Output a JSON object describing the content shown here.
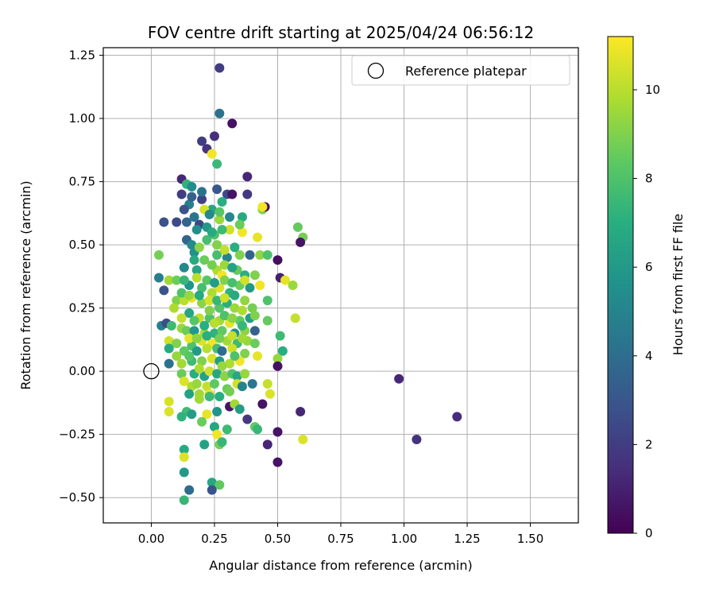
{
  "chart_data": {
    "type": "scatter",
    "title": "FOV centre drift starting at 2025/04/24 06:56:12",
    "xlabel": "Angular distance from reference (arcmin)",
    "ylabel": "Rotation from reference (arcmin)",
    "xlim": [
      -0.19,
      1.69
    ],
    "ylim": [
      -0.6,
      1.28
    ],
    "xticks": [
      0.0,
      0.25,
      0.5,
      0.75,
      1.0,
      1.25,
      1.5
    ],
    "xtick_labels": [
      "0.00",
      "0.25",
      "0.50",
      "0.75",
      "1.00",
      "1.25",
      "1.50"
    ],
    "yticks": [
      -0.5,
      -0.25,
      0.0,
      0.25,
      0.5,
      0.75,
      1.0,
      1.25
    ],
    "ytick_labels": [
      "−0.50",
      "−0.25",
      "0.00",
      "0.25",
      "0.50",
      "0.75",
      "1.00",
      "1.25"
    ],
    "grid": true,
    "legend": {
      "position": "top-right",
      "entries": [
        {
          "label": "Reference platepar",
          "marker": "open-circle"
        }
      ]
    },
    "reference_point": {
      "x": 0.0,
      "y": 0.0
    },
    "colorbar": {
      "label": "Hours from first FF file",
      "min": 0,
      "max": 11.2,
      "ticks": [
        0,
        2,
        4,
        6,
        8,
        10
      ],
      "tick_labels": [
        "0",
        "2",
        "4",
        "6",
        "8",
        "10"
      ],
      "colormap": "viridis"
    },
    "points": [
      [
        0.27,
        1.2,
        2.0
      ],
      [
        0.27,
        1.02,
        4.2
      ],
      [
        0.32,
        0.98,
        0.5
      ],
      [
        0.25,
        0.93,
        1.5
      ],
      [
        0.2,
        0.91,
        2.0
      ],
      [
        0.22,
        0.88,
        1.7
      ],
      [
        0.24,
        0.86,
        11.0
      ],
      [
        0.26,
        0.82,
        7.5
      ],
      [
        0.12,
        0.76,
        1.2
      ],
      [
        0.38,
        0.77,
        1.2
      ],
      [
        0.14,
        0.74,
        7.2
      ],
      [
        0.16,
        0.73,
        5.5
      ],
      [
        0.12,
        0.7,
        2.0
      ],
      [
        0.26,
        0.72,
        3.0
      ],
      [
        0.3,
        0.7,
        2.5
      ],
      [
        0.32,
        0.7,
        0.6
      ],
      [
        0.38,
        0.7,
        1.8
      ],
      [
        0.2,
        0.68,
        2.2
      ],
      [
        0.28,
        0.67,
        7.0
      ],
      [
        0.15,
        0.66,
        4.8
      ],
      [
        0.24,
        0.64,
        6.5
      ],
      [
        0.21,
        0.64,
        10.5
      ],
      [
        0.44,
        0.64,
        9.0
      ],
      [
        0.45,
        0.65,
        0.4
      ],
      [
        0.44,
        0.65,
        11.0
      ],
      [
        0.05,
        0.59,
        2.8
      ],
      [
        0.1,
        0.59,
        2.5
      ],
      [
        0.14,
        0.59,
        3.6
      ],
      [
        0.19,
        0.58,
        2.4
      ],
      [
        0.22,
        0.57,
        6.0
      ],
      [
        0.27,
        0.6,
        9.5
      ],
      [
        0.36,
        0.61,
        6.8
      ],
      [
        0.58,
        0.57,
        8.5
      ],
      [
        0.6,
        0.53,
        8.8
      ],
      [
        0.59,
        0.51,
        0.6
      ],
      [
        0.14,
        0.52,
        3.6
      ],
      [
        0.16,
        0.5,
        5.2
      ],
      [
        0.25,
        0.54,
        8.0
      ],
      [
        0.31,
        0.56,
        10.4
      ],
      [
        0.36,
        0.55,
        11.0
      ],
      [
        0.42,
        0.53,
        10.8
      ],
      [
        0.03,
        0.46,
        8.8
      ],
      [
        0.17,
        0.47,
        5.6
      ],
      [
        0.19,
        0.49,
        9.2
      ],
      [
        0.21,
        0.44,
        8.6
      ],
      [
        0.26,
        0.46,
        7.8
      ],
      [
        0.3,
        0.45,
        5.0
      ],
      [
        0.35,
        0.46,
        9.0
      ],
      [
        0.39,
        0.46,
        3.5
      ],
      [
        0.43,
        0.46,
        9.3
      ],
      [
        0.46,
        0.46,
        8.0
      ],
      [
        0.5,
        0.44,
        0.4
      ],
      [
        0.13,
        0.41,
        5.2
      ],
      [
        0.18,
        0.4,
        6.5
      ],
      [
        0.26,
        0.4,
        9.8
      ],
      [
        0.28,
        0.38,
        11.0
      ],
      [
        0.34,
        0.4,
        8.5
      ],
      [
        0.37,
        0.38,
        7.0
      ],
      [
        0.41,
        0.38,
        9.0
      ],
      [
        0.51,
        0.37,
        1.0
      ],
      [
        0.53,
        0.36,
        10.8
      ],
      [
        0.56,
        0.34,
        9.5
      ],
      [
        0.03,
        0.37,
        4.8
      ],
      [
        0.07,
        0.36,
        9.6
      ],
      [
        0.1,
        0.36,
        8.6
      ],
      [
        0.15,
        0.34,
        5.8
      ],
      [
        0.2,
        0.33,
        7.8
      ],
      [
        0.24,
        0.31,
        9.8
      ],
      [
        0.27,
        0.33,
        10.6
      ],
      [
        0.31,
        0.31,
        7.2
      ],
      [
        0.35,
        0.34,
        8.6
      ],
      [
        0.39,
        0.33,
        6.0
      ],
      [
        0.43,
        0.34,
        11.0
      ],
      [
        0.05,
        0.32,
        2.9
      ],
      [
        0.1,
        0.28,
        9.0
      ],
      [
        0.13,
        0.28,
        10.0
      ],
      [
        0.16,
        0.29,
        10.8
      ],
      [
        0.2,
        0.27,
        9.2
      ],
      [
        0.23,
        0.28,
        10.5
      ],
      [
        0.27,
        0.25,
        8.2
      ],
      [
        0.3,
        0.27,
        7.0
      ],
      [
        0.33,
        0.25,
        9.5
      ],
      [
        0.37,
        0.28,
        9.3
      ],
      [
        0.4,
        0.25,
        8.8
      ],
      [
        0.46,
        0.28,
        8.0
      ],
      [
        0.09,
        0.25,
        9.8
      ],
      [
        0.15,
        0.23,
        6.6
      ],
      [
        0.19,
        0.21,
        10.2
      ],
      [
        0.23,
        0.21,
        8.0
      ],
      [
        0.27,
        0.2,
        9.6
      ],
      [
        0.31,
        0.19,
        10.8
      ],
      [
        0.35,
        0.2,
        8.4
      ],
      [
        0.39,
        0.21,
        6.2
      ],
      [
        0.41,
        0.22,
        9.0
      ],
      [
        0.46,
        0.2,
        8.5
      ],
      [
        0.57,
        0.21,
        10.2
      ],
      [
        0.04,
        0.18,
        4.8
      ],
      [
        0.06,
        0.19,
        2.6
      ],
      [
        0.08,
        0.18,
        7.6
      ],
      [
        0.12,
        0.17,
        9.4
      ],
      [
        0.14,
        0.16,
        8.6
      ],
      [
        0.17,
        0.16,
        6.0
      ],
      [
        0.21,
        0.15,
        9.8
      ],
      [
        0.25,
        0.15,
        7.2
      ],
      [
        0.28,
        0.16,
        8.4
      ],
      [
        0.33,
        0.15,
        5.6
      ],
      [
        0.37,
        0.16,
        9.2
      ],
      [
        0.41,
        0.16,
        3.5
      ],
      [
        0.51,
        0.14,
        7.6
      ],
      [
        0.07,
        0.12,
        10.4
      ],
      [
        0.1,
        0.11,
        9.0
      ],
      [
        0.16,
        0.1,
        8.0
      ],
      [
        0.2,
        0.12,
        10.6
      ],
      [
        0.24,
        0.11,
        11.0
      ],
      [
        0.3,
        0.12,
        9.6
      ],
      [
        0.34,
        0.11,
        7.6
      ],
      [
        0.38,
        0.12,
        9.4
      ],
      [
        0.41,
        0.11,
        8.6
      ],
      [
        0.07,
        0.09,
        6.8
      ],
      [
        0.13,
        0.08,
        8.4
      ],
      [
        0.18,
        0.08,
        6.0
      ],
      [
        0.22,
        0.09,
        10.0
      ],
      [
        0.26,
        0.09,
        7.8
      ],
      [
        0.28,
        0.08,
        4.0
      ],
      [
        0.32,
        0.09,
        10.4
      ],
      [
        0.37,
        0.07,
        9.0
      ],
      [
        0.52,
        0.08,
        7.0
      ],
      [
        0.07,
        0.03,
        4.2
      ],
      [
        0.12,
        0.03,
        9.6
      ],
      [
        0.16,
        0.04,
        7.6
      ],
      [
        0.2,
        0.04,
        9.0
      ],
      [
        0.24,
        0.05,
        10.6
      ],
      [
        0.27,
        0.04,
        6.2
      ],
      [
        0.31,
        0.03,
        9.8
      ],
      [
        0.35,
        0.04,
        11.0
      ],
      [
        0.42,
        0.06,
        10.8
      ],
      [
        0.5,
        0.05,
        9.4
      ],
      [
        0.5,
        0.02,
        0.5
      ],
      [
        0.12,
        -0.01,
        8.6
      ],
      [
        0.17,
        -0.01,
        7.0
      ],
      [
        0.21,
        -0.02,
        6.4
      ],
      [
        0.23,
        0.0,
        10.4
      ],
      [
        0.26,
        -0.01,
        6.6
      ],
      [
        0.29,
        -0.02,
        9.2
      ],
      [
        0.32,
        -0.01,
        8.0
      ],
      [
        0.34,
        -0.02,
        6.6
      ],
      [
        0.37,
        -0.01,
        9.4
      ],
      [
        0.13,
        -0.04,
        10.6
      ],
      [
        0.16,
        -0.06,
        9.8
      ],
      [
        0.18,
        -0.05,
        9.4
      ],
      [
        0.22,
        -0.06,
        10.2
      ],
      [
        0.25,
        -0.05,
        8.4
      ],
      [
        0.3,
        -0.07,
        8.6
      ],
      [
        0.34,
        -0.05,
        10.4
      ],
      [
        0.36,
        -0.06,
        5.0
      ],
      [
        0.4,
        -0.05,
        4.4
      ],
      [
        0.46,
        -0.05,
        10.2
      ],
      [
        0.15,
        -0.09,
        6.4
      ],
      [
        0.19,
        -0.09,
        9.6
      ],
      [
        0.23,
        -0.09,
        10.8
      ],
      [
        0.27,
        -0.1,
        7.0
      ],
      [
        0.31,
        -0.08,
        8.8
      ],
      [
        0.47,
        -0.09,
        10.6
      ],
      [
        0.07,
        -0.12,
        10.5
      ],
      [
        0.19,
        -0.11,
        9.6
      ],
      [
        0.23,
        -0.1,
        7.6
      ],
      [
        0.07,
        -0.16,
        10.6
      ],
      [
        0.14,
        -0.16,
        7.6
      ],
      [
        0.16,
        -0.17,
        6.2
      ],
      [
        0.22,
        -0.17,
        10.8
      ],
      [
        0.26,
        -0.16,
        5.8
      ],
      [
        0.31,
        -0.14,
        0.6
      ],
      [
        0.33,
        -0.13,
        9.6
      ],
      [
        0.35,
        -0.15,
        6.2
      ],
      [
        0.44,
        -0.13,
        0.6
      ],
      [
        0.59,
        -0.16,
        1.2
      ],
      [
        0.12,
        -0.18,
        7.2
      ],
      [
        0.2,
        -0.2,
        8.6
      ],
      [
        0.25,
        -0.22,
        6.6
      ],
      [
        0.3,
        -0.23,
        7.6
      ],
      [
        0.38,
        -0.19,
        1.8
      ],
      [
        0.41,
        -0.22,
        8.4
      ],
      [
        0.42,
        -0.23,
        7.4
      ],
      [
        0.26,
        -0.25,
        11.0
      ],
      [
        0.27,
        -0.29,
        8.8
      ],
      [
        0.21,
        -0.29,
        6.4
      ],
      [
        0.28,
        -0.28,
        7.4
      ],
      [
        0.46,
        -0.29,
        1.2
      ],
      [
        0.5,
        -0.24,
        0.6
      ],
      [
        0.6,
        -0.27,
        10.6
      ],
      [
        0.5,
        -0.36,
        0.6
      ],
      [
        0.13,
        -0.31,
        6.8
      ],
      [
        0.13,
        -0.34,
        10.6
      ],
      [
        0.13,
        -0.4,
        6.0
      ],
      [
        0.24,
        -0.44,
        6.6
      ],
      [
        0.27,
        -0.45,
        8.4
      ],
      [
        0.15,
        -0.47,
        3.9
      ],
      [
        0.24,
        -0.47,
        2.8
      ],
      [
        0.13,
        -0.51,
        7.4
      ],
      [
        0.98,
        -0.03,
        1.2
      ],
      [
        1.05,
        -0.27,
        1.6
      ],
      [
        1.21,
        -0.18,
        1.4
      ],
      [
        0.18,
        0.56,
        5.5
      ],
      [
        0.22,
        0.52,
        7.8
      ],
      [
        0.26,
        0.5,
        9.0
      ],
      [
        0.29,
        0.48,
        10.2
      ],
      [
        0.33,
        0.49,
        7.0
      ],
      [
        0.17,
        0.44,
        6.8
      ],
      [
        0.24,
        0.42,
        8.8
      ],
      [
        0.29,
        0.42,
        9.5
      ],
      [
        0.32,
        0.41,
        6.4
      ],
      [
        0.13,
        0.36,
        7.4
      ],
      [
        0.18,
        0.37,
        10.0
      ],
      [
        0.22,
        0.36,
        8.2
      ],
      [
        0.25,
        0.35,
        6.2
      ],
      [
        0.29,
        0.36,
        9.0
      ],
      [
        0.32,
        0.35,
        7.8
      ],
      [
        0.37,
        0.36,
        10.4
      ],
      [
        0.12,
        0.31,
        8.0
      ],
      [
        0.15,
        0.3,
        9.4
      ],
      [
        0.19,
        0.3,
        6.8
      ],
      [
        0.23,
        0.24,
        9.0
      ],
      [
        0.26,
        0.28,
        7.4
      ],
      [
        0.29,
        0.29,
        10.4
      ],
      [
        0.33,
        0.3,
        6.8
      ],
      [
        0.36,
        0.24,
        9.8
      ],
      [
        0.12,
        0.21,
        10.2
      ],
      [
        0.17,
        0.2,
        8.2
      ],
      [
        0.21,
        0.18,
        7.0
      ],
      [
        0.25,
        0.19,
        10.0
      ],
      [
        0.29,
        0.22,
        8.0
      ],
      [
        0.32,
        0.21,
        9.2
      ],
      [
        0.36,
        0.18,
        7.4
      ],
      [
        0.15,
        0.13,
        10.8
      ],
      [
        0.18,
        0.13,
        9.2
      ],
      [
        0.22,
        0.14,
        7.0
      ],
      [
        0.27,
        0.13,
        8.8
      ],
      [
        0.32,
        0.14,
        10.2
      ],
      [
        0.36,
        0.13,
        9.6
      ],
      [
        0.1,
        0.06,
        9.4
      ],
      [
        0.15,
        0.06,
        8.2
      ],
      [
        0.19,
        0.01,
        9.8
      ],
      [
        0.28,
        0.02,
        9.4
      ],
      [
        0.33,
        0.06,
        8.0
      ],
      [
        0.2,
        0.71,
        4.2
      ],
      [
        0.16,
        0.69,
        3.5
      ],
      [
        0.13,
        0.64,
        2.8
      ],
      [
        0.17,
        0.61,
        4.4
      ],
      [
        0.23,
        0.62,
        5.2
      ],
      [
        0.27,
        0.63,
        8.2
      ],
      [
        0.31,
        0.61,
        5.2
      ],
      [
        0.35,
        0.58,
        8.6
      ],
      [
        0.28,
        0.56,
        7.6
      ],
      [
        0.24,
        0.55,
        6.8
      ]
    ]
  }
}
